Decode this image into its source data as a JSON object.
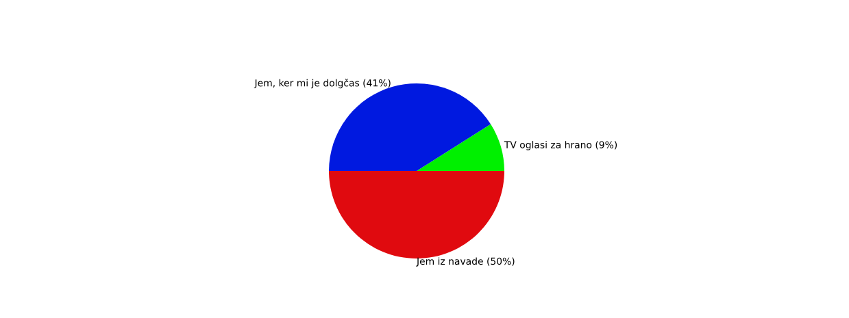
{
  "chart_data": {
    "type": "pie",
    "categories": [
      "TV oglasi za hrano (9%)",
      "Jem, ker mi je dolgčas (41%)",
      "Jem iz navade (50%)"
    ],
    "values": [
      9,
      41,
      50
    ],
    "colors": [
      "#00f000",
      "#0019e0",
      "#e00a0f"
    ]
  }
}
